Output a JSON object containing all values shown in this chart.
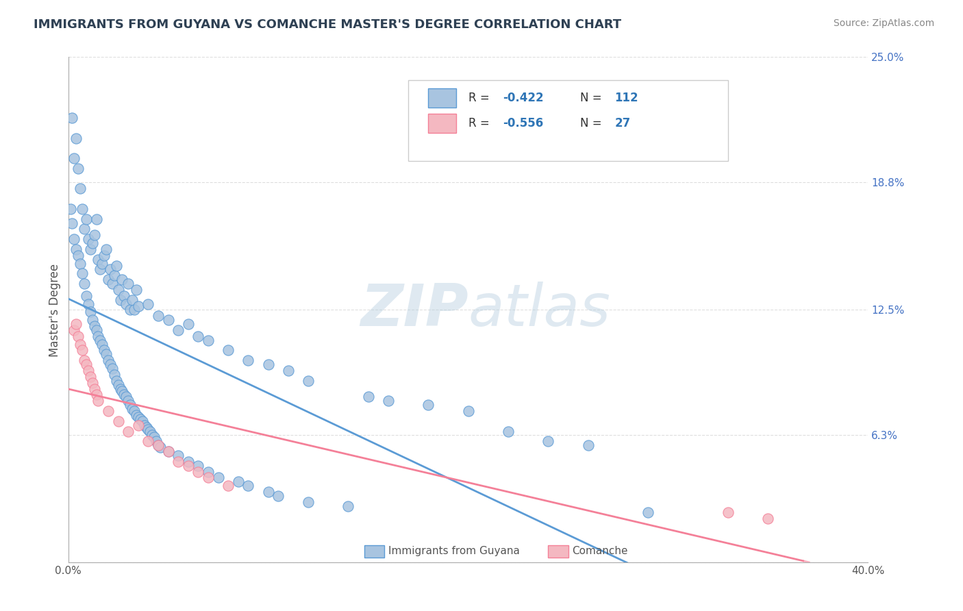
{
  "title": "IMMIGRANTS FROM GUYANA VS COMANCHE MASTER'S DEGREE CORRELATION CHART",
  "source_text": "Source: ZipAtlas.com",
  "ylabel": "Master's Degree",
  "xlim": [
    0.0,
    0.4
  ],
  "ylim": [
    0.0,
    0.25
  ],
  "ytick_right_labels": [
    "25.0%",
    "18.8%",
    "12.5%",
    "6.3%",
    ""
  ],
  "ytick_right_values": [
    0.25,
    0.188,
    0.125,
    0.063,
    0.0
  ],
  "color_blue": "#a8c4e0",
  "color_blue_line": "#5b9bd5",
  "color_pink": "#f4b8c1",
  "color_pink_line": "#f48098",
  "color_legend_vals": "#2e75b6",
  "background_color": "#ffffff",
  "grid_color": "#d0d0d0",
  "blue_scatter_x": [
    0.002,
    0.003,
    0.004,
    0.005,
    0.006,
    0.007,
    0.008,
    0.009,
    0.01,
    0.011,
    0.012,
    0.013,
    0.014,
    0.015,
    0.016,
    0.017,
    0.018,
    0.019,
    0.02,
    0.021,
    0.022,
    0.023,
    0.024,
    0.025,
    0.026,
    0.027,
    0.028,
    0.029,
    0.03,
    0.031,
    0.032,
    0.033,
    0.034,
    0.035,
    0.04,
    0.045,
    0.05,
    0.055,
    0.06,
    0.065,
    0.07,
    0.08,
    0.09,
    0.1,
    0.11,
    0.12,
    0.15,
    0.16,
    0.18,
    0.2,
    0.22,
    0.24,
    0.26,
    0.001,
    0.002,
    0.003,
    0.004,
    0.005,
    0.006,
    0.007,
    0.008,
    0.009,
    0.01,
    0.011,
    0.012,
    0.013,
    0.014,
    0.015,
    0.016,
    0.017,
    0.018,
    0.019,
    0.02,
    0.021,
    0.022,
    0.023,
    0.024,
    0.025,
    0.026,
    0.027,
    0.028,
    0.029,
    0.03,
    0.031,
    0.032,
    0.033,
    0.034,
    0.035,
    0.036,
    0.037,
    0.038,
    0.039,
    0.04,
    0.041,
    0.042,
    0.043,
    0.044,
    0.045,
    0.046,
    0.05,
    0.055,
    0.06,
    0.065,
    0.07,
    0.075,
    0.085,
    0.09,
    0.1,
    0.105,
    0.12,
    0.14,
    0.29
  ],
  "blue_scatter_y": [
    0.22,
    0.2,
    0.21,
    0.195,
    0.185,
    0.175,
    0.165,
    0.17,
    0.16,
    0.155,
    0.158,
    0.162,
    0.17,
    0.15,
    0.145,
    0.148,
    0.152,
    0.155,
    0.14,
    0.145,
    0.138,
    0.142,
    0.147,
    0.135,
    0.13,
    0.14,
    0.132,
    0.128,
    0.138,
    0.125,
    0.13,
    0.125,
    0.135,
    0.127,
    0.128,
    0.122,
    0.12,
    0.115,
    0.118,
    0.112,
    0.11,
    0.105,
    0.1,
    0.098,
    0.095,
    0.09,
    0.082,
    0.08,
    0.078,
    0.075,
    0.065,
    0.06,
    0.058,
    0.175,
    0.168,
    0.16,
    0.155,
    0.152,
    0.148,
    0.143,
    0.138,
    0.132,
    0.128,
    0.124,
    0.12,
    0.117,
    0.115,
    0.112,
    0.11,
    0.108,
    0.105,
    0.103,
    0.1,
    0.098,
    0.096,
    0.093,
    0.09,
    0.088,
    0.086,
    0.085,
    0.083,
    0.082,
    0.08,
    0.078,
    0.076,
    0.075,
    0.073,
    0.072,
    0.071,
    0.07,
    0.068,
    0.067,
    0.066,
    0.065,
    0.063,
    0.062,
    0.06,
    0.058,
    0.057,
    0.055,
    0.053,
    0.05,
    0.048,
    0.045,
    0.042,
    0.04,
    0.038,
    0.035,
    0.033,
    0.03,
    0.028,
    0.025
  ],
  "pink_scatter_x": [
    0.003,
    0.004,
    0.005,
    0.006,
    0.007,
    0.008,
    0.009,
    0.01,
    0.011,
    0.012,
    0.013,
    0.014,
    0.015,
    0.02,
    0.025,
    0.03,
    0.035,
    0.04,
    0.045,
    0.05,
    0.055,
    0.06,
    0.065,
    0.07,
    0.08,
    0.33,
    0.35
  ],
  "pink_scatter_y": [
    0.115,
    0.118,
    0.112,
    0.108,
    0.105,
    0.1,
    0.098,
    0.095,
    0.092,
    0.089,
    0.086,
    0.083,
    0.08,
    0.075,
    0.07,
    0.065,
    0.068,
    0.06,
    0.058,
    0.055,
    0.05,
    0.048,
    0.045,
    0.042,
    0.038,
    0.025,
    0.022
  ]
}
